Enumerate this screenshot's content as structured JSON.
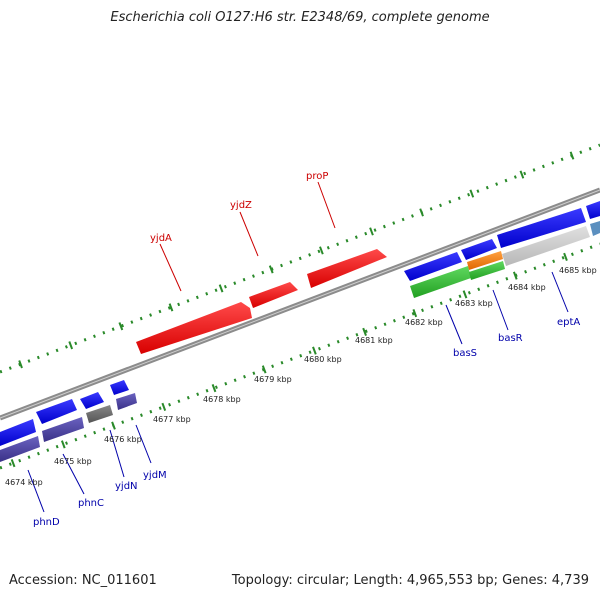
{
  "title": "Escherichia coli O127:H6 str. E2348/69, complete genome",
  "footer": {
    "accession": "Accession: NC_011601",
    "summary": "Topology: circular; Length: 4,965,553 bp; Genes: 4,739"
  },
  "scale_labels": [
    "4674 kbp",
    "4675 kbp",
    "4676 kbp",
    "4677 kbp",
    "4678 kbp",
    "4679 kbp",
    "4680 kbp",
    "4681 kbp",
    "4682 kbp",
    "4683 kbp",
    "4684 kbp",
    "4685 kbp"
  ],
  "gene_labels_forward": [
    "yjdA",
    "yjdZ",
    "proP"
  ],
  "gene_labels_reverse": [
    "phnD",
    "phnC",
    "yjdN",
    "yjdM",
    "basS",
    "basR",
    "eptA"
  ],
  "colors": {
    "forward_gene": "#ee1111",
    "reverse_gene": "#1818e0",
    "reverse_gene_alt": "#4a3f9e",
    "backbone": "#8c8c8c",
    "tick": "#2a8a2a",
    "forward_label": "#cc0000",
    "reverse_label": "#0000aa"
  }
}
